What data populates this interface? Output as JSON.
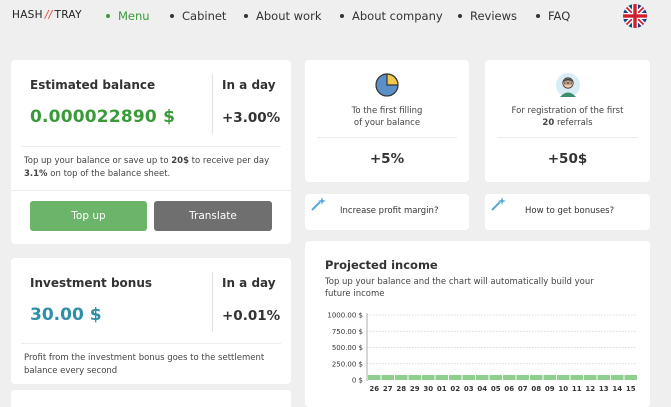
{
  "nav": {
    "logo_left": "HASH",
    "logo_sep": "//",
    "logo_right": "TRAY",
    "items": [
      {
        "label": "Menu",
        "active": true
      },
      {
        "label": "Cabinet",
        "active": false
      },
      {
        "label": "About work",
        "active": false
      },
      {
        "label": "About company",
        "active": false
      },
      {
        "label": "Reviews",
        "active": false
      },
      {
        "label": "FAQ",
        "active": false
      }
    ],
    "language_icon": "uk-flag-icon"
  },
  "balance": {
    "label": "Estimated balance",
    "value": "0.000022890 $",
    "day_label": "In a day",
    "day_value": "+3.00%",
    "note_pre": "Top up your balance or save up to ",
    "note_amount": "20$",
    "note_mid": " to receive per day",
    "note_pct": "3.1%",
    "note_post": " on top of the balance sheet.",
    "topup_label": "Top up",
    "translate_label": "Translate"
  },
  "investment": {
    "label": "Investment bonus",
    "value": "30.00 $",
    "day_label": "In a day",
    "day_value": "+0.01%",
    "note": "Profit from the investment bonus goes to the settlement balance every second"
  },
  "features": [
    {
      "line1": "To the first filling",
      "line2": "of your balance",
      "bold": "",
      "value": "+5%",
      "icon": "pie-chart-icon"
    },
    {
      "line1": "For registration of the first",
      "line2": " referrals",
      "bold": "20",
      "value": "+50$",
      "icon": "person-avatar-icon"
    }
  ],
  "asks": [
    {
      "label": "Increase profit margin?",
      "icon": "sparkle-icon"
    },
    {
      "label": "How to get bonuses?",
      "icon": "sparkle-icon"
    }
  ],
  "chart": {
    "title": "Projected income",
    "subtitle": "Top up your balance and the chart will automatically build your future income"
  },
  "colors": {
    "accent_green": "#3a9a3a",
    "button_green": "#6db46b",
    "button_grey": "#6f6f6f",
    "bonus_blue": "#2f8fa8",
    "bar_green": "#8fcf8d"
  },
  "chart_data": {
    "type": "bar",
    "categories": [
      "26",
      "27",
      "28",
      "29",
      "30",
      "01",
      "02",
      "03",
      "04",
      "05",
      "06",
      "07",
      "08",
      "09",
      "10",
      "11",
      "12",
      "13",
      "14",
      "15"
    ],
    "values": [
      5,
      5,
      5,
      5,
      5,
      5,
      5,
      5,
      5,
      5,
      5,
      5,
      5,
      5,
      5,
      5,
      5,
      5,
      5,
      5
    ],
    "y_ticks": [
      "1000.00 $",
      "750.00 $",
      "500.00 $",
      "250.00 $",
      "0 $"
    ],
    "ylim": [
      0,
      1000
    ],
    "grid": true
  }
}
